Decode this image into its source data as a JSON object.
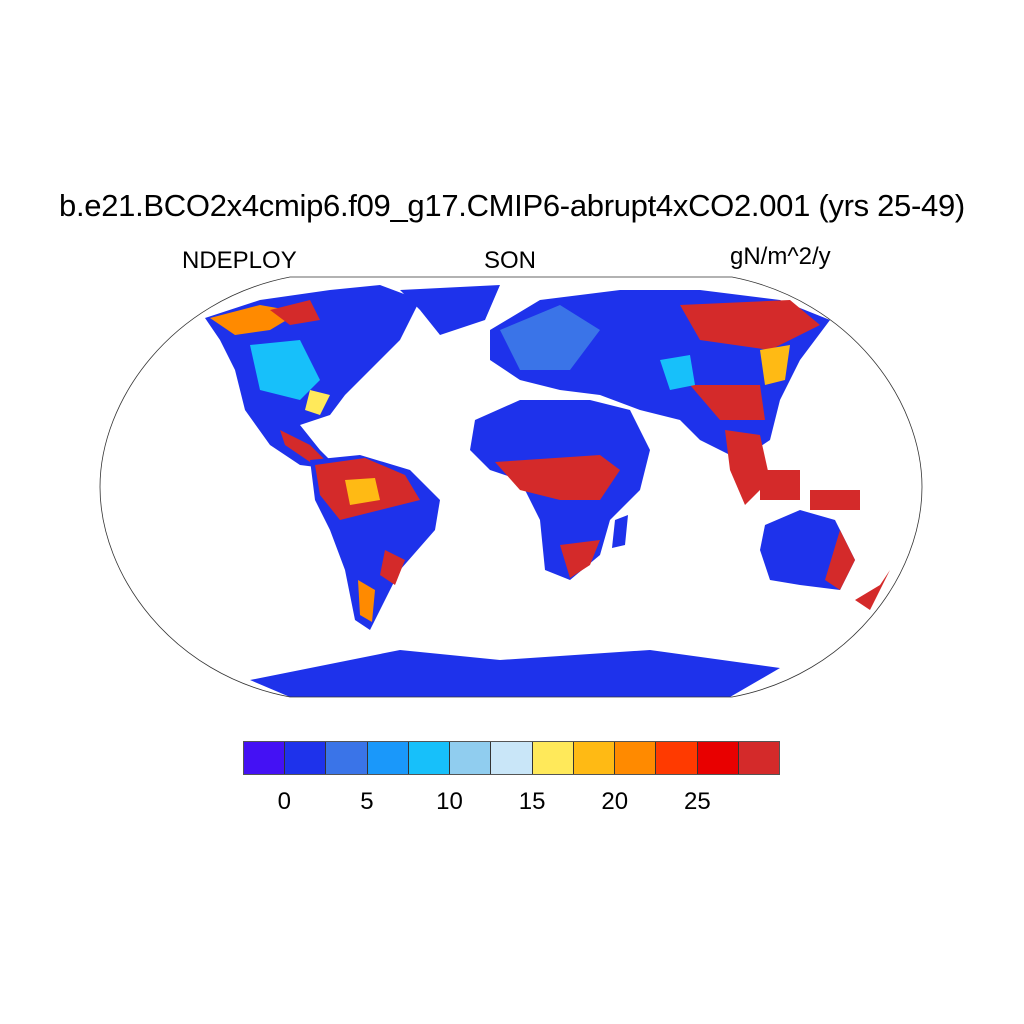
{
  "title": "b.e21.BCO2x4cmip6.f09_g17.CMIP6-abrupt4xCO2.001 (yrs 25-49)",
  "left_label": "NDEPLOY",
  "center_label": "SON",
  "right_label": "gN/m^2/y",
  "projection": "Robinson",
  "colorbar": {
    "levels": [
      0,
      2.5,
      5,
      7.5,
      10,
      12.5,
      15,
      17.5,
      20,
      22.5,
      25,
      27.5
    ],
    "tick_labels": [
      "0",
      "5",
      "10",
      "15",
      "20",
      "25"
    ],
    "colors": [
      "#4411F4",
      "#1E32EB",
      "#3A74E8",
      "#1A98FA",
      "#17C0FA",
      "#90CDEF",
      "#C9E6F8",
      "#FFE95A",
      "#FFBA14",
      "#FF8A00",
      "#FF3A00",
      "#E80000",
      "#D42A2A"
    ]
  }
}
